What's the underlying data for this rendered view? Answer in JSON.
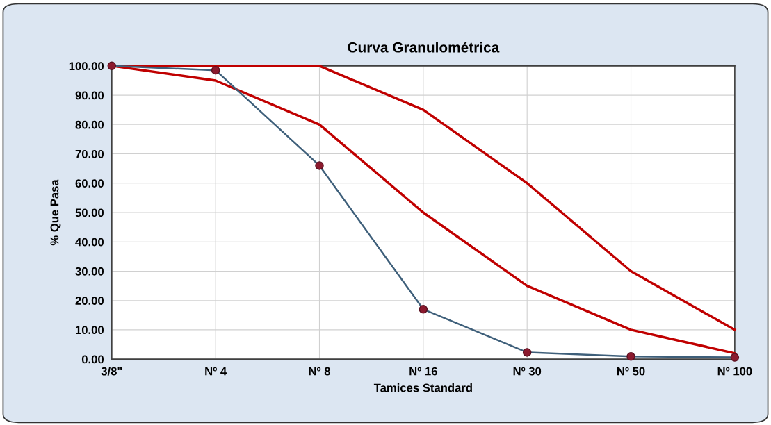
{
  "chart_data": {
    "type": "line",
    "title": "Curva Granulométrica",
    "xlabel": "Tamices Standard",
    "ylabel": "% Que Pasa",
    "categories": [
      "3/8\"",
      "Nº 4",
      "Nº 8",
      "Nº 16",
      "Nº 30",
      "Nº 50",
      "Nº 100"
    ],
    "ylim": [
      0,
      100
    ],
    "yticks": [
      {
        "value": 0,
        "label": "0.00"
      },
      {
        "value": 10,
        "label": "10.00"
      },
      {
        "value": 20,
        "label": "20.00"
      },
      {
        "value": 30,
        "label": "30.00"
      },
      {
        "value": 40,
        "label": "40.00"
      },
      {
        "value": 50,
        "label": "50.00"
      },
      {
        "value": 60,
        "label": "60.00"
      },
      {
        "value": 70,
        "label": "70.00"
      },
      {
        "value": 80,
        "label": "80.00"
      },
      {
        "value": 90,
        "label": "90.00"
      },
      {
        "value": 100,
        "label": "100.00"
      }
    ],
    "grid": true,
    "legend": false,
    "line_style": "solid",
    "series": [
      {
        "color": "#c00000",
        "marker": "none",
        "values": [
          100,
          100,
          100,
          85,
          60,
          30,
          10
        ]
      },
      {
        "color": "#c00000",
        "marker": "none",
        "values": [
          100,
          95,
          80,
          50,
          25,
          10,
          2
        ]
      },
      {
        "color": "#3e5f7a",
        "marker": "circle",
        "values": [
          100,
          98.5,
          66,
          17,
          2.3,
          0.9,
          0.6
        ]
      }
    ]
  }
}
